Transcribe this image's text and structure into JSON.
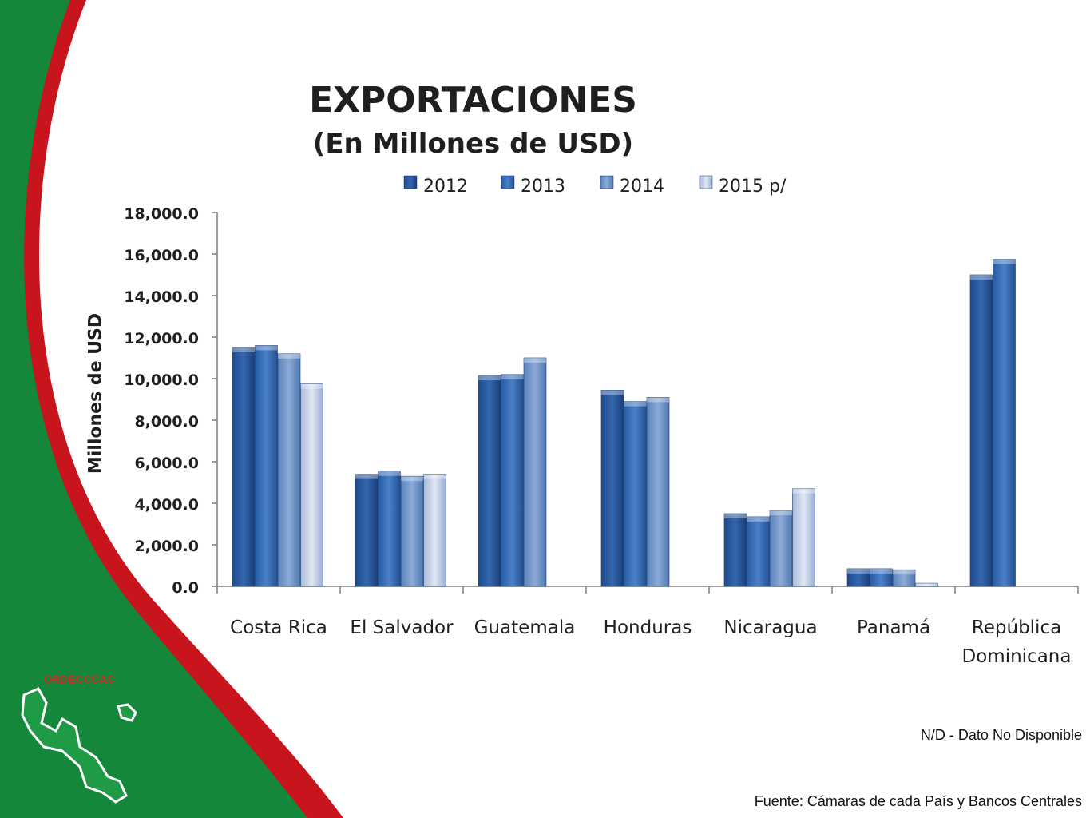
{
  "brand": "ORDECCCAC",
  "notes": {
    "nd": "N/D  - Dato No Disponible",
    "source": "Fuente: Cámaras de cada País y Bancos Centrales"
  },
  "colors": {
    "green": "#14873a",
    "red": "#c8141c",
    "series": [
      "#2a5aa0",
      "#3a6fb5",
      "#6f95c8",
      "#bccbe3"
    ]
  },
  "chart_data": {
    "type": "bar",
    "title": "EXPORTACIONES",
    "subtitle": "(En Millones de USD)",
    "ylabel": "Millones de USD",
    "xlabel": "",
    "ylim": [
      0,
      18000
    ],
    "yticks": [
      "0.0",
      "2,000.0",
      "4,000.0",
      "6,000.0",
      "8,000.0",
      "10,000.0",
      "12,000.0",
      "14,000.0",
      "16,000.0",
      "18,000.0"
    ],
    "legend_position": "top",
    "categories": [
      "Costa Rica",
      "El Salvador",
      "Guatemala",
      "Honduras",
      "Nicaragua",
      "Panamá",
      "República Dominicana"
    ],
    "series": [
      {
        "name": "2012",
        "values": [
          11500,
          5400,
          10150,
          9450,
          3500,
          850,
          15000
        ]
      },
      {
        "name": "2013",
        "values": [
          11600,
          5550,
          10200,
          8900,
          3350,
          850,
          15750
        ]
      },
      {
        "name": "2014",
        "values": [
          11200,
          5300,
          11000,
          9100,
          3650,
          800,
          null
        ]
      },
      {
        "name": "2015 p/",
        "values": [
          9750,
          5400,
          null,
          null,
          4700,
          150,
          null
        ]
      }
    ]
  }
}
